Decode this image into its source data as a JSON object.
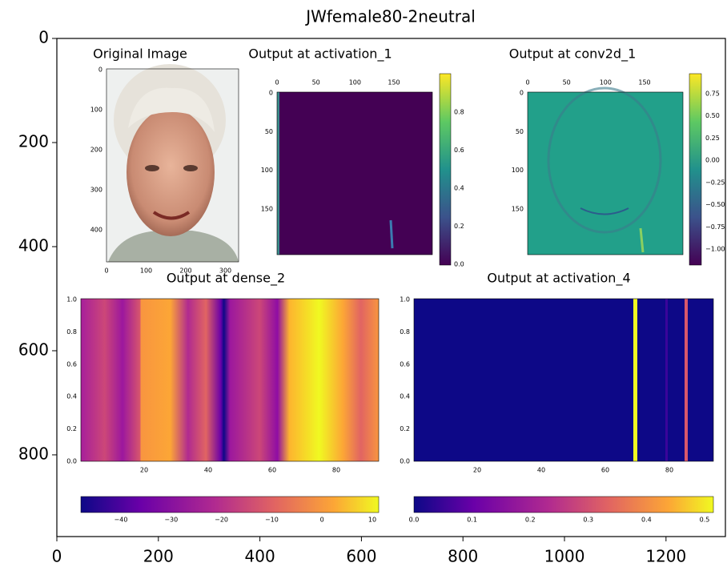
{
  "chart_data": {
    "type": "image",
    "title": "JWfemale80-2neutral",
    "xlim": [
      0,
      1317
    ],
    "ylim": [
      957,
      0
    ],
    "xticks": [
      0,
      200,
      400,
      600,
      800,
      1000,
      1200
    ],
    "yticks": [
      0,
      200,
      400,
      600,
      800
    ],
    "panels": [
      {
        "title": "Original Image",
        "xticks": [
          "0",
          "100",
          "200",
          "300"
        ],
        "yticks": [
          "0",
          "100",
          "200",
          "300",
          "400"
        ]
      },
      {
        "title": "Output at activation_1",
        "xticks": [
          "0",
          "50",
          "100",
          "150"
        ],
        "yticks": [
          "0",
          "50",
          "100",
          "150"
        ],
        "colorbar_ticks": [
          "0.0",
          "0.2",
          "0.4",
          "0.6",
          "0.8"
        ]
      },
      {
        "title": "Output at conv2d_1",
        "xticks": [
          "0",
          "50",
          "100",
          "150"
        ],
        "yticks": [
          "0",
          "50",
          "100",
          "150"
        ],
        "colorbar_ticks": [
          "0.75",
          "0.50",
          "0.25",
          "0.00",
          "−0.25",
          "−0.50",
          "−0.75",
          "−1.00"
        ]
      },
      {
        "title": "Output at dense_2",
        "xticks": [
          "20",
          "40",
          "60",
          "80"
        ],
        "yticks": [
          "0.0",
          "0.2",
          "0.4",
          "0.6",
          "0.8",
          "1.0"
        ],
        "colorbar_ticks": [
          "−40",
          "−30",
          "−20",
          "−10",
          "0",
          "10"
        ]
      },
      {
        "title": "Output at activation_4",
        "xticks": [
          "20",
          "40",
          "60",
          "80"
        ],
        "yticks": [
          "0.0",
          "0.2",
          "0.4",
          "0.6",
          "0.8",
          "1.0"
        ],
        "colorbar_ticks": [
          "0.0",
          "0.1",
          "0.2",
          "0.3",
          "0.4",
          "0.5"
        ]
      }
    ]
  }
}
